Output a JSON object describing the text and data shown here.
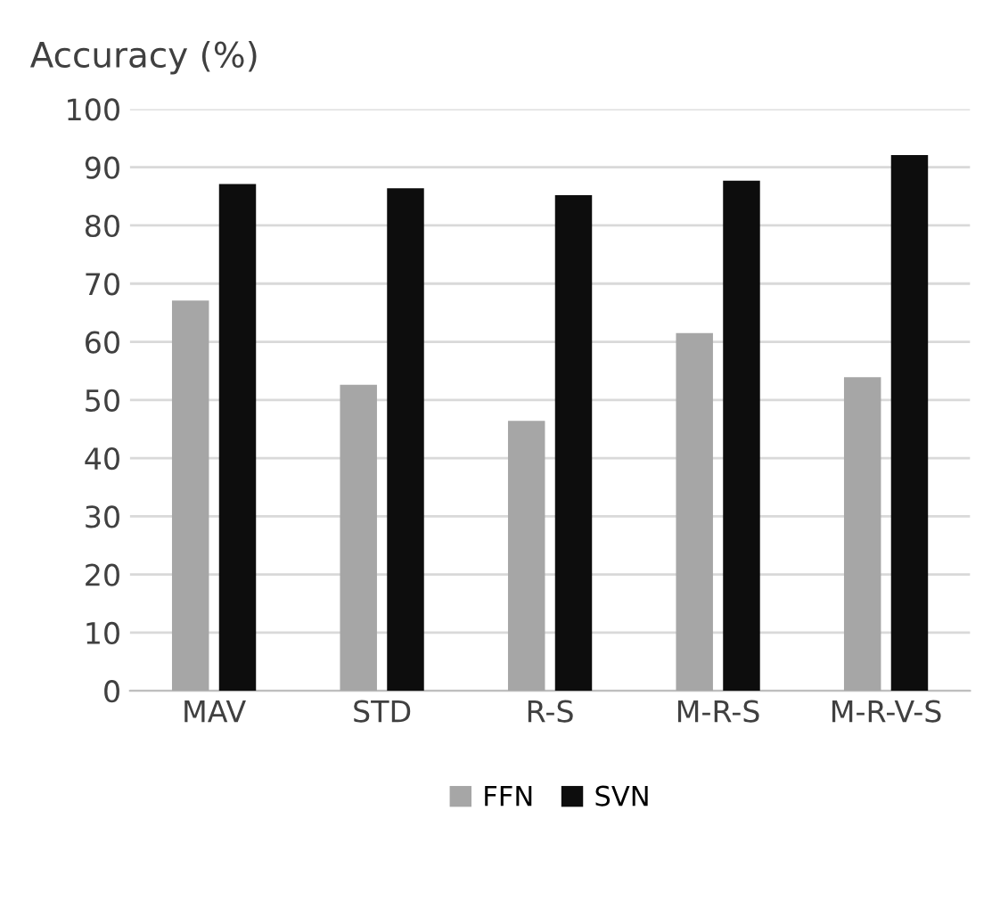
{
  "chart_data": {
    "type": "bar",
    "ylabel": "Accuracy (%)",
    "categories": [
      "MAV",
      "STD",
      "R-S",
      "M-R-S",
      "M-R-V-S"
    ],
    "series": [
      {
        "name": "FFN",
        "color": "#a6a6a6",
        "values": [
          67.1,
          52.6,
          46.4,
          61.5,
          53.9
        ]
      },
      {
        "name": "SVN",
        "color": "#0d0d0d",
        "values": [
          87.1,
          86.4,
          85.2,
          87.7,
          92.1
        ]
      }
    ],
    "ylim": [
      0,
      100
    ],
    "yticks": [
      0,
      10,
      20,
      30,
      40,
      50,
      60,
      70,
      80,
      90,
      100
    ],
    "grid": "y",
    "legend": "bottom"
  }
}
